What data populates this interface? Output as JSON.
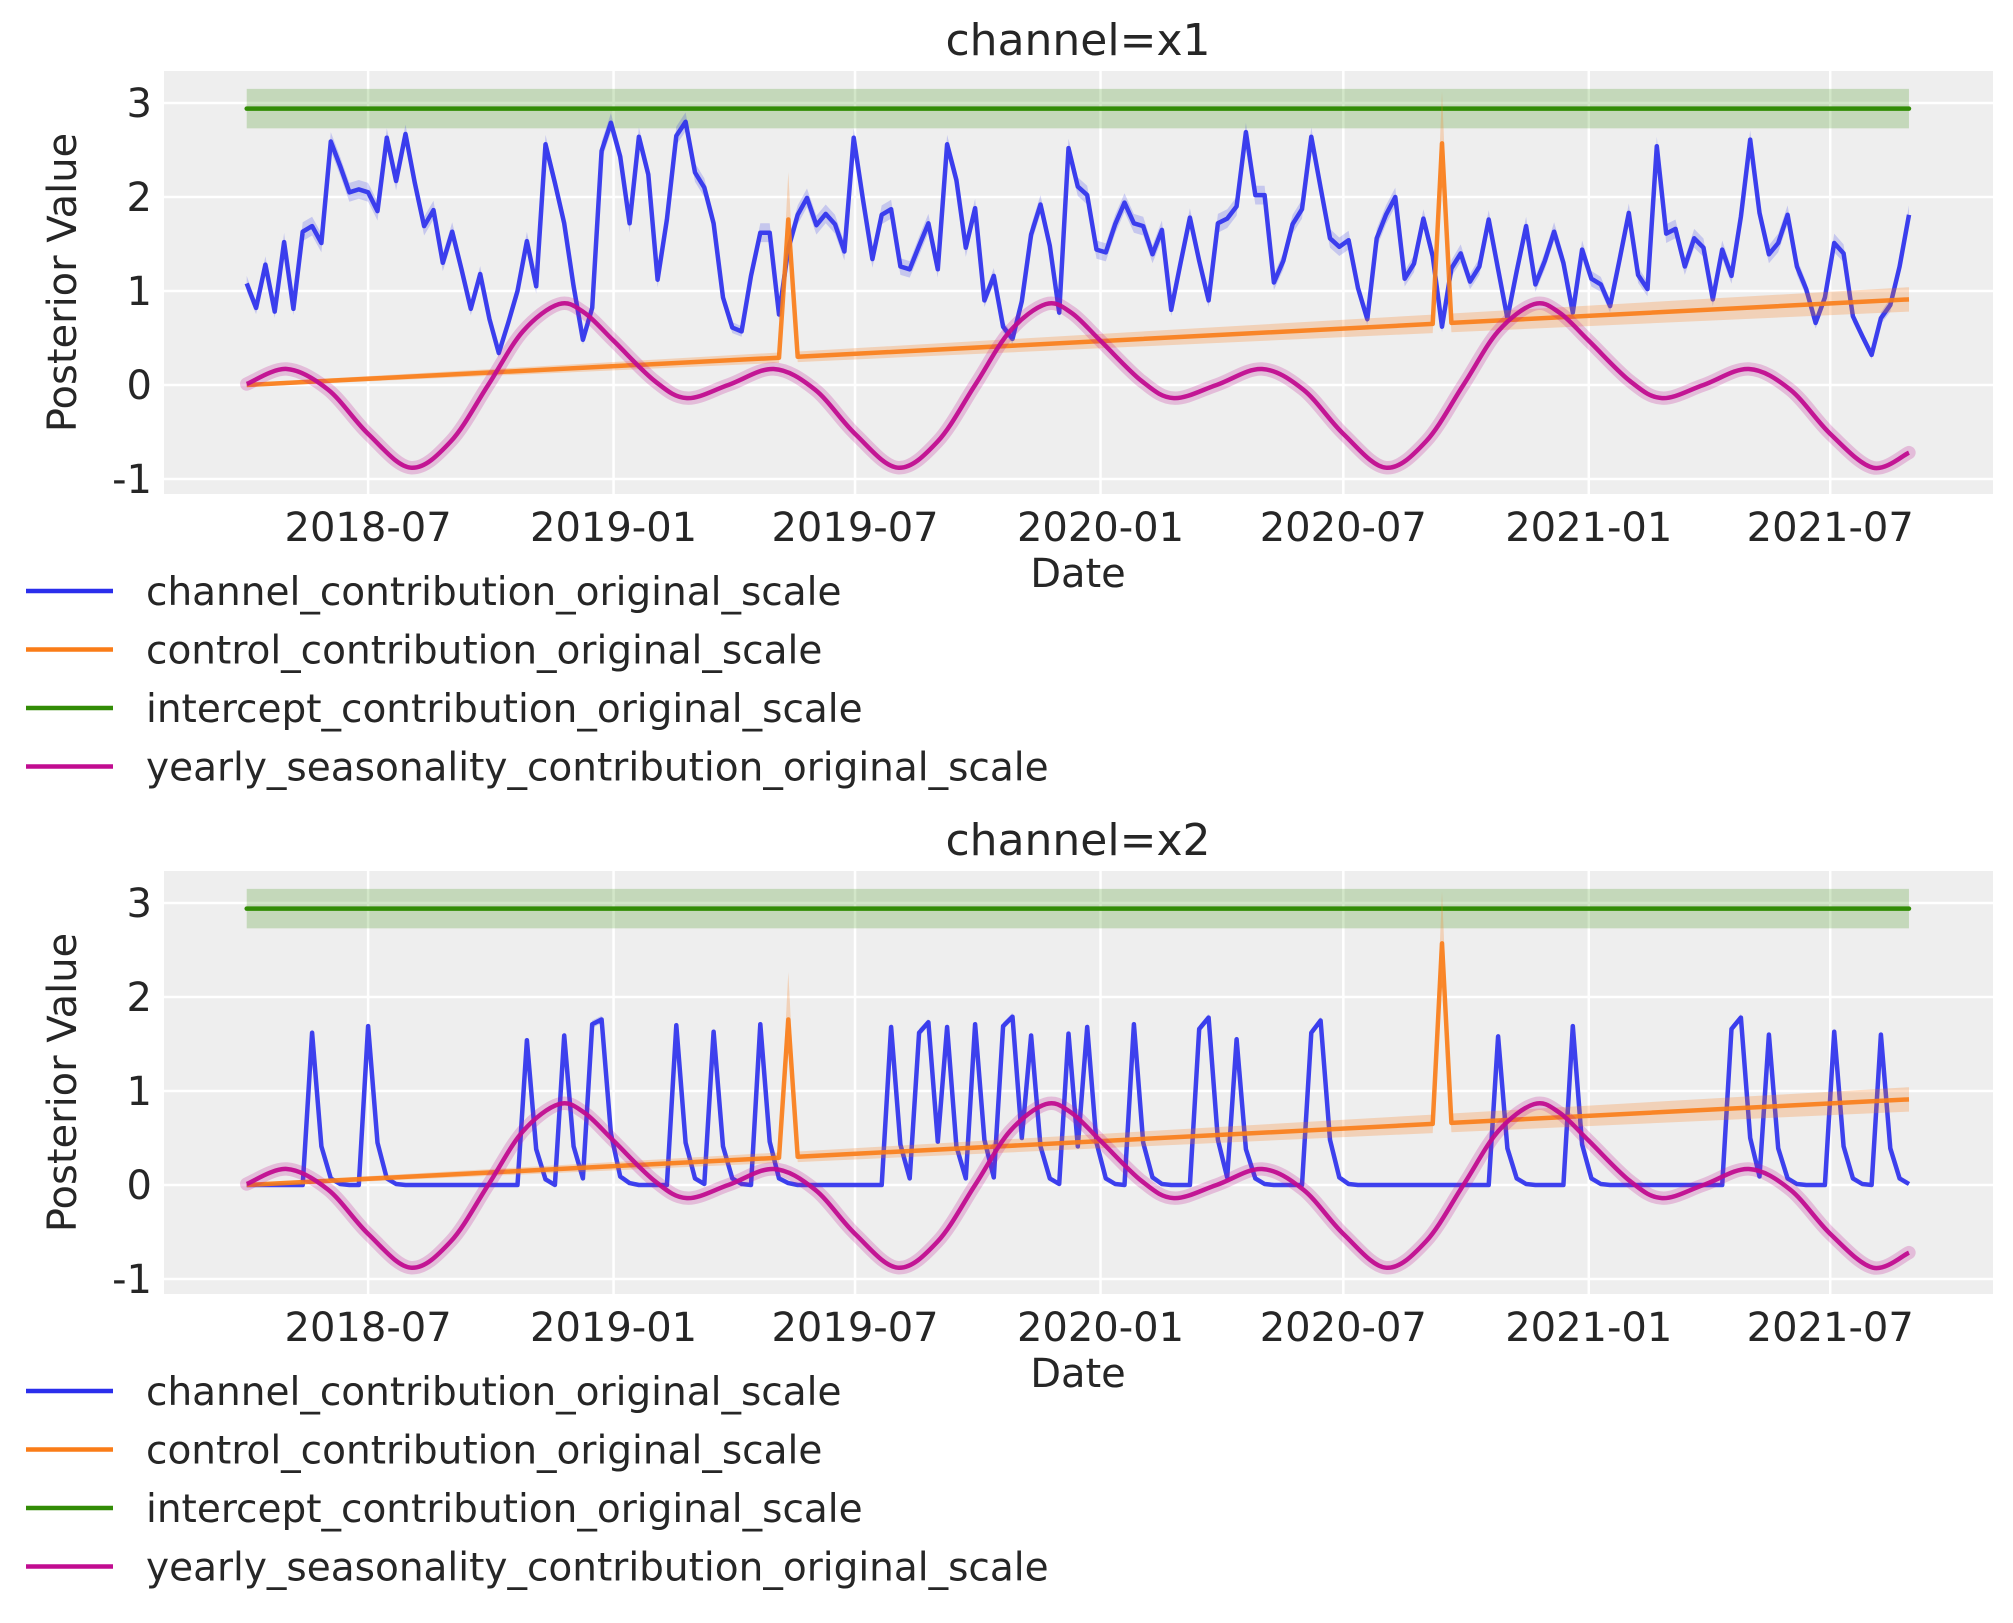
{
  "colors": {
    "channel": "#2a2eec",
    "control": "#fa7c17",
    "intercept": "#328c06",
    "seasonality": "#c10c90",
    "axes_background": "#eeeeee",
    "grid": "#ffffff"
  },
  "legend": {
    "placement": "below-left",
    "items": [
      {
        "label": "channel_contribution_original_scale",
        "series": "channel"
      },
      {
        "label": "control_contribution_original_scale",
        "series": "control"
      },
      {
        "label": "intercept_contribution_original_scale",
        "series": "intercept"
      },
      {
        "label": "yearly_seasonality_contribution_original_scale",
        "series": "seasonality"
      }
    ]
  },
  "chart_data": [
    {
      "type": "line",
      "title": "channel=x1",
      "xlabel": "Date",
      "ylabel": "Posterior Value",
      "grid": true,
      "xlim": [
        "2018-01-29",
        "2021-10-31"
      ],
      "ylim": [
        -1.16,
        3.34
      ],
      "x_ticks": [
        "2018-07",
        "2019-01",
        "2019-07",
        "2020-01",
        "2020-07",
        "2021-01",
        "2021-07"
      ],
      "y_ticks": [
        -1,
        0,
        1,
        2,
        3
      ],
      "x": {
        "first": "2018-04-01",
        "last": "2021-08-29",
        "frequency": "weekly"
      },
      "series": {
        "channel": {
          "hdi_halfwidth": 0.1,
          "values": [
            1.08,
            0.82,
            1.28,
            0.78,
            1.52,
            0.81,
            1.63,
            1.69,
            1.51,
            2.59,
            2.33,
            2.05,
            2.08,
            2.05,
            1.85,
            2.63,
            2.17,
            2.67,
            2.15,
            1.69,
            1.86,
            1.3,
            1.63,
            1.23,
            0.81,
            1.18,
            0.7,
            0.34,
            0.66,
            1.0,
            1.53,
            1.05,
            2.56,
            2.15,
            1.72,
            1.05,
            0.48,
            0.82,
            2.49,
            2.79,
            2.43,
            1.72,
            2.64,
            2.24,
            1.12,
            1.76,
            2.65,
            2.8,
            2.26,
            2.1,
            1.72,
            0.93,
            0.61,
            0.57,
            1.16,
            1.62,
            1.62,
            0.75,
            1.45,
            1.81,
            1.99,
            1.7,
            1.82,
            1.71,
            1.42,
            2.63,
            1.97,
            1.34,
            1.81,
            1.87,
            1.26,
            1.23,
            1.48,
            1.72,
            1.23,
            2.56,
            2.18,
            1.46,
            1.88,
            0.9,
            1.16,
            0.62,
            0.49,
            0.89,
            1.6,
            1.92,
            1.48,
            0.77,
            2.52,
            2.11,
            2.02,
            1.44,
            1.41,
            1.71,
            1.94,
            1.72,
            1.69,
            1.39,
            1.65,
            0.8,
            1.3,
            1.78,
            1.32,
            0.9,
            1.72,
            1.77,
            1.9,
            2.69,
            2.02,
            2.02,
            1.09,
            1.32,
            1.71,
            1.87,
            2.64,
            2.1,
            1.56,
            1.47,
            1.54,
            1.03,
            0.7,
            1.56,
            1.81,
            2.0,
            1.13,
            1.29,
            1.77,
            1.37,
            0.62,
            1.24,
            1.4,
            1.1,
            1.26,
            1.76,
            1.23,
            0.71,
            1.21,
            1.69,
            1.07,
            1.32,
            1.63,
            1.3,
            0.77,
            1.44,
            1.13,
            1.07,
            0.84,
            1.33,
            1.83,
            1.17,
            1.02,
            2.54,
            1.61,
            1.66,
            1.26,
            1.56,
            1.46,
            0.91,
            1.44,
            1.16,
            1.79,
            2.61,
            1.83,
            1.39,
            1.51,
            1.81,
            1.26,
            1.02,
            0.66,
            0.93,
            1.51,
            1.4,
            0.73,
            0.52,
            0.32,
            0.71,
            0.85,
            1.26,
            1.81
          ]
        },
        "control": {
          "hdi_halfwidth_first": 0.02,
          "hdi_halfwidth_last": 0.13,
          "points": [
            [
              "2018-04-01",
              0.0
            ],
            [
              "2019-05-05",
              0.29
            ],
            [
              "2019-05-12",
              1.76
            ],
            [
              "2019-05-19",
              0.3
            ],
            [
              "2020-09-06",
              0.65
            ],
            [
              "2020-09-13",
              2.57
            ],
            [
              "2020-09-20",
              0.66
            ],
            [
              "2021-08-29",
              0.91
            ]
          ]
        },
        "intercept": {
          "value": 2.94,
          "hdi": [
            2.73,
            3.15
          ],
          "first": "2018-04-01",
          "last": "2021-08-29"
        },
        "seasonality": {
          "hdi_halfwidth": 0.05,
          "points": [
            [
              "2018-04-01",
              0.01
            ],
            [
              "2018-05-01",
              0.17
            ],
            [
              "2018-06-01",
              -0.05
            ],
            [
              "2018-07-01",
              -0.52
            ],
            [
              "2018-08-02",
              -0.88
            ],
            [
              "2018-09-01",
              -0.6
            ],
            [
              "2018-09-29",
              0.0
            ],
            [
              "2018-10-25",
              0.57
            ],
            [
              "2018-11-21",
              0.86
            ],
            [
              "2018-12-10",
              0.77
            ],
            [
              "2019-01-01",
              0.47
            ],
            [
              "2019-02-01",
              0.04
            ],
            [
              "2019-02-25",
              -0.14
            ],
            [
              "2019-03-28",
              0.0
            ],
            [
              "2019-05-01",
              0.17
            ],
            [
              "2019-06-01",
              -0.05
            ],
            [
              "2019-07-01",
              -0.52
            ],
            [
              "2019-08-02",
              -0.88
            ],
            [
              "2019-09-01",
              -0.6
            ],
            [
              "2019-09-29",
              0.0
            ],
            [
              "2019-10-25",
              0.57
            ],
            [
              "2019-11-21",
              0.86
            ],
            [
              "2019-12-10",
              0.77
            ],
            [
              "2020-01-01",
              0.47
            ],
            [
              "2020-02-01",
              0.04
            ],
            [
              "2020-02-25",
              -0.14
            ],
            [
              "2020-03-28",
              0.0
            ],
            [
              "2020-05-01",
              0.17
            ],
            [
              "2020-06-01",
              -0.05
            ],
            [
              "2020-07-01",
              -0.52
            ],
            [
              "2020-08-02",
              -0.88
            ],
            [
              "2020-09-01",
              -0.6
            ],
            [
              "2020-09-29",
              0.0
            ],
            [
              "2020-10-25",
              0.57
            ],
            [
              "2020-11-21",
              0.86
            ],
            [
              "2020-12-10",
              0.77
            ],
            [
              "2021-01-01",
              0.47
            ],
            [
              "2021-02-01",
              0.04
            ],
            [
              "2021-02-25",
              -0.14
            ],
            [
              "2021-03-28",
              0.0
            ],
            [
              "2021-05-01",
              0.17
            ],
            [
              "2021-06-01",
              -0.05
            ],
            [
              "2021-07-01",
              -0.52
            ],
            [
              "2021-08-02",
              -0.88
            ],
            [
              "2021-08-29",
              -0.72
            ]
          ]
        }
      }
    },
    {
      "type": "line",
      "title": "channel=x2",
      "xlabel": "Date",
      "ylabel": "Posterior Value",
      "grid": true,
      "xlim": [
        "2018-01-29",
        "2021-10-31"
      ],
      "ylim": [
        -1.16,
        3.34
      ],
      "x_ticks": [
        "2018-07",
        "2019-01",
        "2019-07",
        "2020-01",
        "2020-07",
        "2021-01",
        "2021-07"
      ],
      "y_ticks": [
        -1,
        0,
        1,
        2,
        3
      ],
      "x": {
        "first": "2018-04-01",
        "last": "2021-08-29",
        "frequency": "weekly"
      },
      "series": {
        "channel": {
          "hdi_halfwidth": 0.04,
          "values": [
            0,
            0,
            0,
            0,
            0,
            0,
            0,
            1.62,
            0.41,
            0.07,
            0.01,
            0,
            0,
            1.69,
            0.45,
            0.07,
            0.01,
            0,
            0,
            0,
            0,
            0,
            0,
            0,
            0,
            0,
            0,
            0,
            0,
            0,
            1.54,
            0.38,
            0.06,
            0,
            1.59,
            0.41,
            0.07,
            1.71,
            1.76,
            0.55,
            0.09,
            0.02,
            0,
            0,
            0,
            0,
            1.7,
            0.45,
            0.07,
            0.01,
            1.63,
            0.41,
            0.07,
            0.01,
            0,
            1.71,
            0.46,
            0.07,
            0.02,
            0,
            0,
            0,
            0,
            0,
            0,
            0,
            0,
            0,
            0,
            1.68,
            0.43,
            0.07,
            1.62,
            1.73,
            0.46,
            1.68,
            0.41,
            0.07,
            1.71,
            0.48,
            0.08,
            1.69,
            1.79,
            0.5,
            1.59,
            0.41,
            0.07,
            0.01,
            1.61,
            0.41,
            1.68,
            0.45,
            0.07,
            0.01,
            0,
            1.71,
            0.45,
            0.08,
            0.01,
            0,
            0,
            0,
            1.66,
            1.78,
            0.48,
            0.08,
            1.55,
            0.38,
            0.07,
            0.01,
            0,
            0,
            0,
            0,
            1.62,
            1.75,
            0.48,
            0.08,
            0.01,
            0,
            0,
            0,
            0,
            0,
            0,
            0,
            0,
            0,
            0,
            0,
            0,
            0,
            0,
            0,
            1.58,
            0.39,
            0.07,
            0.01,
            0,
            0,
            0,
            0,
            1.69,
            0.43,
            0.07,
            0.01,
            0,
            0,
            0,
            0,
            0,
            0,
            0,
            0,
            0,
            0,
            0,
            0,
            0,
            1.66,
            1.78,
            0.5,
            0.09,
            1.6,
            0.39,
            0.07,
            0.01,
            0,
            0,
            0,
            1.63,
            0.41,
            0.07,
            0.01,
            0,
            1.6,
            0.39,
            0.07,
            0.01
          ]
        },
        "control": {
          "hdi_halfwidth_first": 0.02,
          "hdi_halfwidth_last": 0.13,
          "points": [
            [
              "2018-04-01",
              0.0
            ],
            [
              "2019-05-05",
              0.29
            ],
            [
              "2019-05-12",
              1.76
            ],
            [
              "2019-05-19",
              0.3
            ],
            [
              "2020-09-06",
              0.65
            ],
            [
              "2020-09-13",
              2.57
            ],
            [
              "2020-09-20",
              0.66
            ],
            [
              "2021-08-29",
              0.91
            ]
          ]
        },
        "intercept": {
          "value": 2.94,
          "hdi": [
            2.73,
            3.15
          ],
          "first": "2018-04-01",
          "last": "2021-08-29"
        },
        "seasonality": {
          "hdi_halfwidth": 0.05,
          "points": [
            [
              "2018-04-01",
              0.01
            ],
            [
              "2018-05-01",
              0.17
            ],
            [
              "2018-06-01",
              -0.05
            ],
            [
              "2018-07-01",
              -0.52
            ],
            [
              "2018-08-02",
              -0.88
            ],
            [
              "2018-09-01",
              -0.6
            ],
            [
              "2018-09-29",
              0.0
            ],
            [
              "2018-10-25",
              0.57
            ],
            [
              "2018-11-21",
              0.86
            ],
            [
              "2018-12-10",
              0.77
            ],
            [
              "2019-01-01",
              0.47
            ],
            [
              "2019-02-01",
              0.04
            ],
            [
              "2019-02-25",
              -0.14
            ],
            [
              "2019-03-28",
              0.0
            ],
            [
              "2019-05-01",
              0.17
            ],
            [
              "2019-06-01",
              -0.05
            ],
            [
              "2019-07-01",
              -0.52
            ],
            [
              "2019-08-02",
              -0.88
            ],
            [
              "2019-09-01",
              -0.6
            ],
            [
              "2019-09-29",
              0.0
            ],
            [
              "2019-10-25",
              0.57
            ],
            [
              "2019-11-21",
              0.86
            ],
            [
              "2019-12-10",
              0.77
            ],
            [
              "2020-01-01",
              0.47
            ],
            [
              "2020-02-01",
              0.04
            ],
            [
              "2020-02-25",
              -0.14
            ],
            [
              "2020-03-28",
              0.0
            ],
            [
              "2020-05-01",
              0.17
            ],
            [
              "2020-06-01",
              -0.05
            ],
            [
              "2020-07-01",
              -0.52
            ],
            [
              "2020-08-02",
              -0.88
            ],
            [
              "2020-09-01",
              -0.6
            ],
            [
              "2020-09-29",
              0.0
            ],
            [
              "2020-10-25",
              0.57
            ],
            [
              "2020-11-21",
              0.86
            ],
            [
              "2020-12-10",
              0.77
            ],
            [
              "2021-01-01",
              0.47
            ],
            [
              "2021-02-01",
              0.04
            ],
            [
              "2021-02-25",
              -0.14
            ],
            [
              "2021-03-28",
              0.0
            ],
            [
              "2021-05-01",
              0.17
            ],
            [
              "2021-06-01",
              -0.05
            ],
            [
              "2021-07-01",
              -0.52
            ],
            [
              "2021-08-02",
              -0.88
            ],
            [
              "2021-08-29",
              -0.72
            ]
          ]
        }
      }
    }
  ]
}
